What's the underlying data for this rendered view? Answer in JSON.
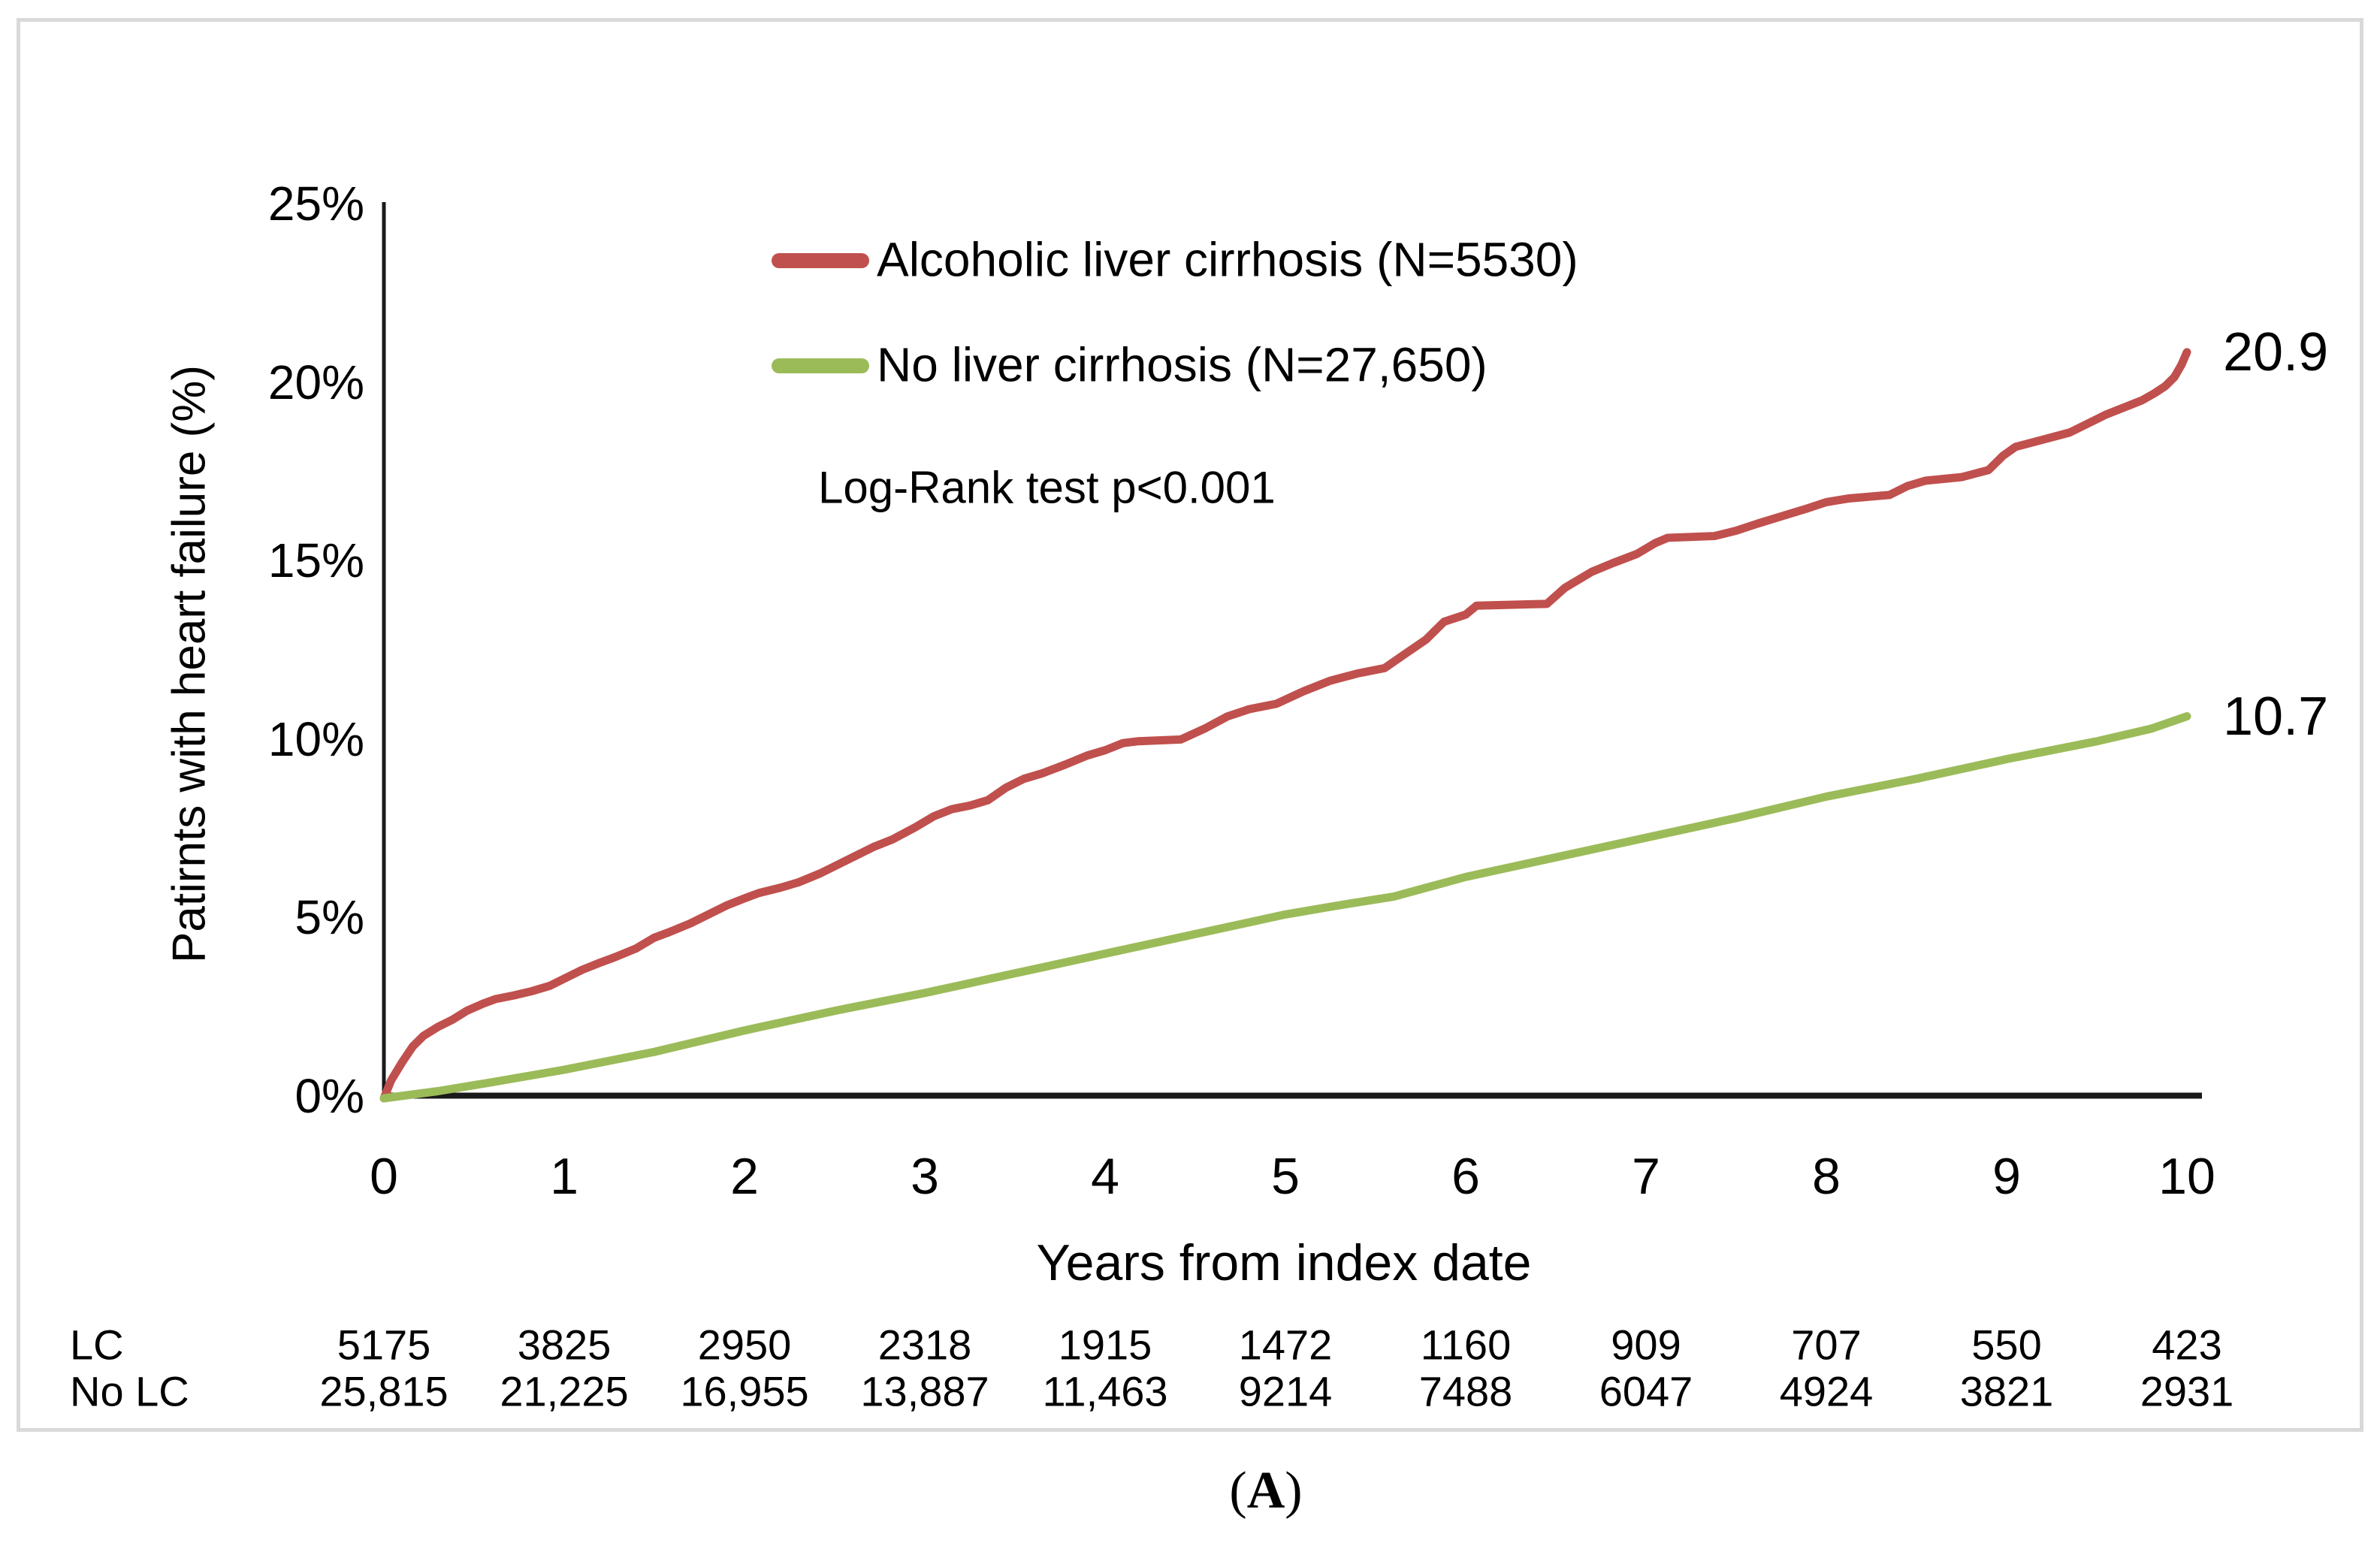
{
  "figure": {
    "caption_open": "(",
    "caption_letter": "A",
    "caption_close": ")",
    "annotation": "Log-Rank test p<0.001",
    "border_color": "#d9d9d9",
    "axis_color": "#1a1a1a"
  },
  "chart_data": {
    "type": "line",
    "title": "",
    "xlabel": "Years from index date",
    "ylabel": "Patirnts with heart failure (%)",
    "xlim": [
      0,
      10
    ],
    "ylim": [
      0,
      25
    ],
    "grid": false,
    "legend_position": "top-center-inside",
    "x_ticks": [
      "0",
      "1",
      "2",
      "3",
      "4",
      "5",
      "6",
      "7",
      "8",
      "9",
      "10"
    ],
    "y_ticks": [
      {
        "label": "0%",
        "value": 0
      },
      {
        "label": "5%",
        "value": 5
      },
      {
        "label": "10%",
        "value": 10
      },
      {
        "label": "15%",
        "value": 15
      },
      {
        "label": "20%",
        "value": 20
      },
      {
        "label": "25%",
        "value": 25
      }
    ],
    "series": [
      {
        "name": "Alcoholic liver cirrhosis (N=5530)",
        "id": "alcoholic-liver-cirrhosis",
        "color": "#c0504d",
        "end_label": "20.9",
        "end_value": 20.9,
        "points": [
          [
            0,
            0
          ],
          [
            0.04,
            0.5
          ],
          [
            0.1,
            1.0
          ],
          [
            0.16,
            1.45
          ],
          [
            0.22,
            1.75
          ],
          [
            0.3,
            2.0
          ],
          [
            0.38,
            2.2
          ],
          [
            0.46,
            2.45
          ],
          [
            0.55,
            2.65
          ],
          [
            0.62,
            2.78
          ],
          [
            0.72,
            2.88
          ],
          [
            0.82,
            3.0
          ],
          [
            0.92,
            3.15
          ],
          [
            1.0,
            3.35
          ],
          [
            1.1,
            3.6
          ],
          [
            1.2,
            3.8
          ],
          [
            1.28,
            3.95
          ],
          [
            1.4,
            4.2
          ],
          [
            1.5,
            4.5
          ],
          [
            1.58,
            4.65
          ],
          [
            1.7,
            4.9
          ],
          [
            1.8,
            5.15
          ],
          [
            1.9,
            5.4
          ],
          [
            2.0,
            5.6
          ],
          [
            2.08,
            5.75
          ],
          [
            2.2,
            5.9
          ],
          [
            2.3,
            6.05
          ],
          [
            2.42,
            6.3
          ],
          [
            2.52,
            6.55
          ],
          [
            2.62,
            6.8
          ],
          [
            2.72,
            7.05
          ],
          [
            2.82,
            7.25
          ],
          [
            2.95,
            7.6
          ],
          [
            3.05,
            7.9
          ],
          [
            3.15,
            8.1
          ],
          [
            3.25,
            8.2
          ],
          [
            3.35,
            8.35
          ],
          [
            3.45,
            8.7
          ],
          [
            3.55,
            8.95
          ],
          [
            3.65,
            9.1
          ],
          [
            3.78,
            9.35
          ],
          [
            3.9,
            9.6
          ],
          [
            4.0,
            9.75
          ],
          [
            4.1,
            9.95
          ],
          [
            4.18,
            10.0
          ],
          [
            4.42,
            10.05
          ],
          [
            4.55,
            10.35
          ],
          [
            4.68,
            10.7
          ],
          [
            4.8,
            10.9
          ],
          [
            4.95,
            11.05
          ],
          [
            5.1,
            11.4
          ],
          [
            5.25,
            11.7
          ],
          [
            5.4,
            11.9
          ],
          [
            5.55,
            12.05
          ],
          [
            5.65,
            12.4
          ],
          [
            5.78,
            12.85
          ],
          [
            5.88,
            13.35
          ],
          [
            6.0,
            13.55
          ],
          [
            6.06,
            13.8
          ],
          [
            6.45,
            13.85
          ],
          [
            6.55,
            14.3
          ],
          [
            6.7,
            14.75
          ],
          [
            6.82,
            15.0
          ],
          [
            6.95,
            15.25
          ],
          [
            7.05,
            15.55
          ],
          [
            7.12,
            15.7
          ],
          [
            7.38,
            15.75
          ],
          [
            7.5,
            15.9
          ],
          [
            7.62,
            16.1
          ],
          [
            7.75,
            16.3
          ],
          [
            7.88,
            16.5
          ],
          [
            8.0,
            16.7
          ],
          [
            8.12,
            16.8
          ],
          [
            8.35,
            16.9
          ],
          [
            8.45,
            17.15
          ],
          [
            8.55,
            17.3
          ],
          [
            8.75,
            17.4
          ],
          [
            8.9,
            17.6
          ],
          [
            8.98,
            18.0
          ],
          [
            9.05,
            18.25
          ],
          [
            9.2,
            18.45
          ],
          [
            9.35,
            18.65
          ],
          [
            9.45,
            18.9
          ],
          [
            9.55,
            19.15
          ],
          [
            9.65,
            19.35
          ],
          [
            9.75,
            19.55
          ],
          [
            9.82,
            19.75
          ],
          [
            9.88,
            19.95
          ],
          [
            9.93,
            20.2
          ],
          [
            9.97,
            20.55
          ],
          [
            10,
            20.9
          ]
        ]
      },
      {
        "name": "No liver cirrhosis (N=27,650)",
        "id": "no-liver-cirrhosis",
        "color": "#9bbb59",
        "end_label": "10.7",
        "end_value": 10.7,
        "points": [
          [
            0,
            0
          ],
          [
            0.3,
            0.2
          ],
          [
            0.6,
            0.45
          ],
          [
            1.0,
            0.8
          ],
          [
            1.5,
            1.3
          ],
          [
            2.0,
            1.9
          ],
          [
            2.5,
            2.45
          ],
          [
            3.0,
            2.95
          ],
          [
            3.5,
            3.5
          ],
          [
            4.0,
            4.05
          ],
          [
            4.5,
            4.6
          ],
          [
            5.0,
            5.15
          ],
          [
            5.35,
            5.45
          ],
          [
            5.6,
            5.65
          ],
          [
            6.0,
            6.2
          ],
          [
            6.5,
            6.75
          ],
          [
            7.0,
            7.3
          ],
          [
            7.5,
            7.85
          ],
          [
            8.0,
            8.45
          ],
          [
            8.5,
            8.95
          ],
          [
            9.0,
            9.5
          ],
          [
            9.5,
            10.0
          ],
          [
            9.8,
            10.35
          ],
          [
            10,
            10.7
          ]
        ]
      }
    ],
    "risk_table": {
      "rows": [
        {
          "label": "LC",
          "values": [
            "5175",
            "3825",
            "2950",
            "2318",
            "1915",
            "1472",
            "1160",
            "909",
            "707",
            "550",
            "423"
          ]
        },
        {
          "label": "No LC",
          "values": [
            "25,815",
            "21,225",
            "16,955",
            "13,887",
            "11,463",
            "9214",
            "7488",
            "6047",
            "4924",
            "3821",
            "2931"
          ]
        }
      ]
    }
  }
}
